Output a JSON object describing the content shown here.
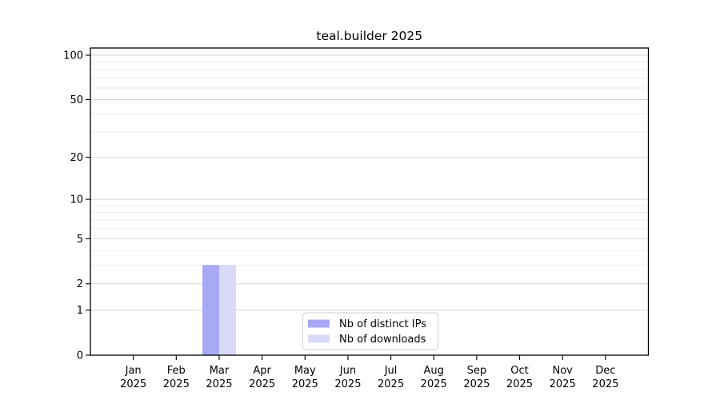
{
  "title": "teal.builder 2025",
  "year_label": "2025",
  "colors": {
    "distinct_ips_bar": "#a8a8f5",
    "downloads_bar": "#d9d9f8",
    "major_grid": "#d6d6d6",
    "minor_grid": "#ececec",
    "frame": "#000000",
    "legend_border": "#cccccc",
    "background": "#ffffff"
  },
  "chart_data": {
    "type": "bar",
    "title": "teal.builder 2025",
    "categories": [
      "Jan",
      "Feb",
      "Mar",
      "Apr",
      "May",
      "Jun",
      "Jul",
      "Aug",
      "Sep",
      "Oct",
      "Nov",
      "Dec"
    ],
    "year_label": "2025",
    "series": [
      {
        "name": "Nb of distinct IPs",
        "color": "#a8a8f5",
        "values": [
          0,
          0,
          3,
          0,
          0,
          0,
          0,
          0,
          0,
          0,
          0,
          0
        ]
      },
      {
        "name": "Nb of downloads",
        "color": "#d9d9f8",
        "values": [
          0,
          0,
          3,
          0,
          0,
          0,
          0,
          0,
          0,
          0,
          0,
          0
        ]
      }
    ],
    "y_ticks": [
      0,
      1,
      2,
      5,
      10,
      20,
      50,
      100
    ],
    "y_minor_ticks": [
      3,
      4,
      6,
      7,
      8,
      9,
      30,
      40,
      60,
      70,
      80,
      90
    ],
    "scale": "log1p",
    "ylim": [
      0,
      112
    ],
    "xlabel": "",
    "ylabel": "",
    "grid": true,
    "legend_position": "bottom-center"
  }
}
